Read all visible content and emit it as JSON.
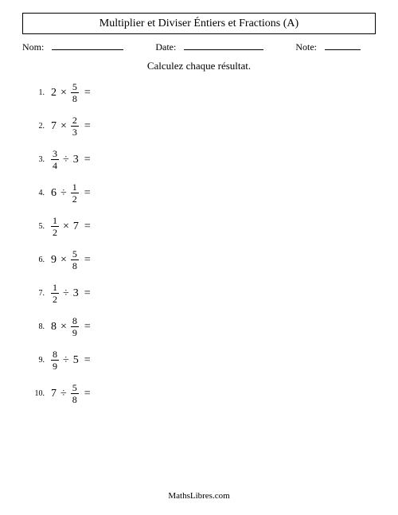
{
  "title": "Multiplier et Diviser Éntiers et Fractions (A)",
  "meta": {
    "name_label": "Nom:",
    "date_label": "Date:",
    "note_label": "Note:"
  },
  "instruction": "Calculez chaque résultat.",
  "equals": "=",
  "problems": [
    {
      "n": "1.",
      "left": {
        "type": "whole",
        "v": "2"
      },
      "op": "×",
      "right": {
        "type": "frac",
        "num": "5",
        "den": "8"
      }
    },
    {
      "n": "2.",
      "left": {
        "type": "whole",
        "v": "7"
      },
      "op": "×",
      "right": {
        "type": "frac",
        "num": "2",
        "den": "3"
      }
    },
    {
      "n": "3.",
      "left": {
        "type": "frac",
        "num": "3",
        "den": "4"
      },
      "op": "÷",
      "right": {
        "type": "whole",
        "v": "3"
      }
    },
    {
      "n": "4.",
      "left": {
        "type": "whole",
        "v": "6"
      },
      "op": "÷",
      "right": {
        "type": "frac",
        "num": "1",
        "den": "2"
      }
    },
    {
      "n": "5.",
      "left": {
        "type": "frac",
        "num": "1",
        "den": "2"
      },
      "op": "×",
      "right": {
        "type": "whole",
        "v": "7"
      }
    },
    {
      "n": "6.",
      "left": {
        "type": "whole",
        "v": "9"
      },
      "op": "×",
      "right": {
        "type": "frac",
        "num": "5",
        "den": "8"
      }
    },
    {
      "n": "7.",
      "left": {
        "type": "frac",
        "num": "1",
        "den": "2"
      },
      "op": "÷",
      "right": {
        "type": "whole",
        "v": "3"
      }
    },
    {
      "n": "8.",
      "left": {
        "type": "whole",
        "v": "8"
      },
      "op": "×",
      "right": {
        "type": "frac",
        "num": "8",
        "den": "9"
      }
    },
    {
      "n": "9.",
      "left": {
        "type": "frac",
        "num": "8",
        "den": "9"
      },
      "op": "÷",
      "right": {
        "type": "whole",
        "v": "5"
      }
    },
    {
      "n": "10.",
      "left": {
        "type": "whole",
        "v": "7"
      },
      "op": "÷",
      "right": {
        "type": "frac",
        "num": "5",
        "den": "8"
      }
    }
  ],
  "footer": "MathsLibres.com"
}
